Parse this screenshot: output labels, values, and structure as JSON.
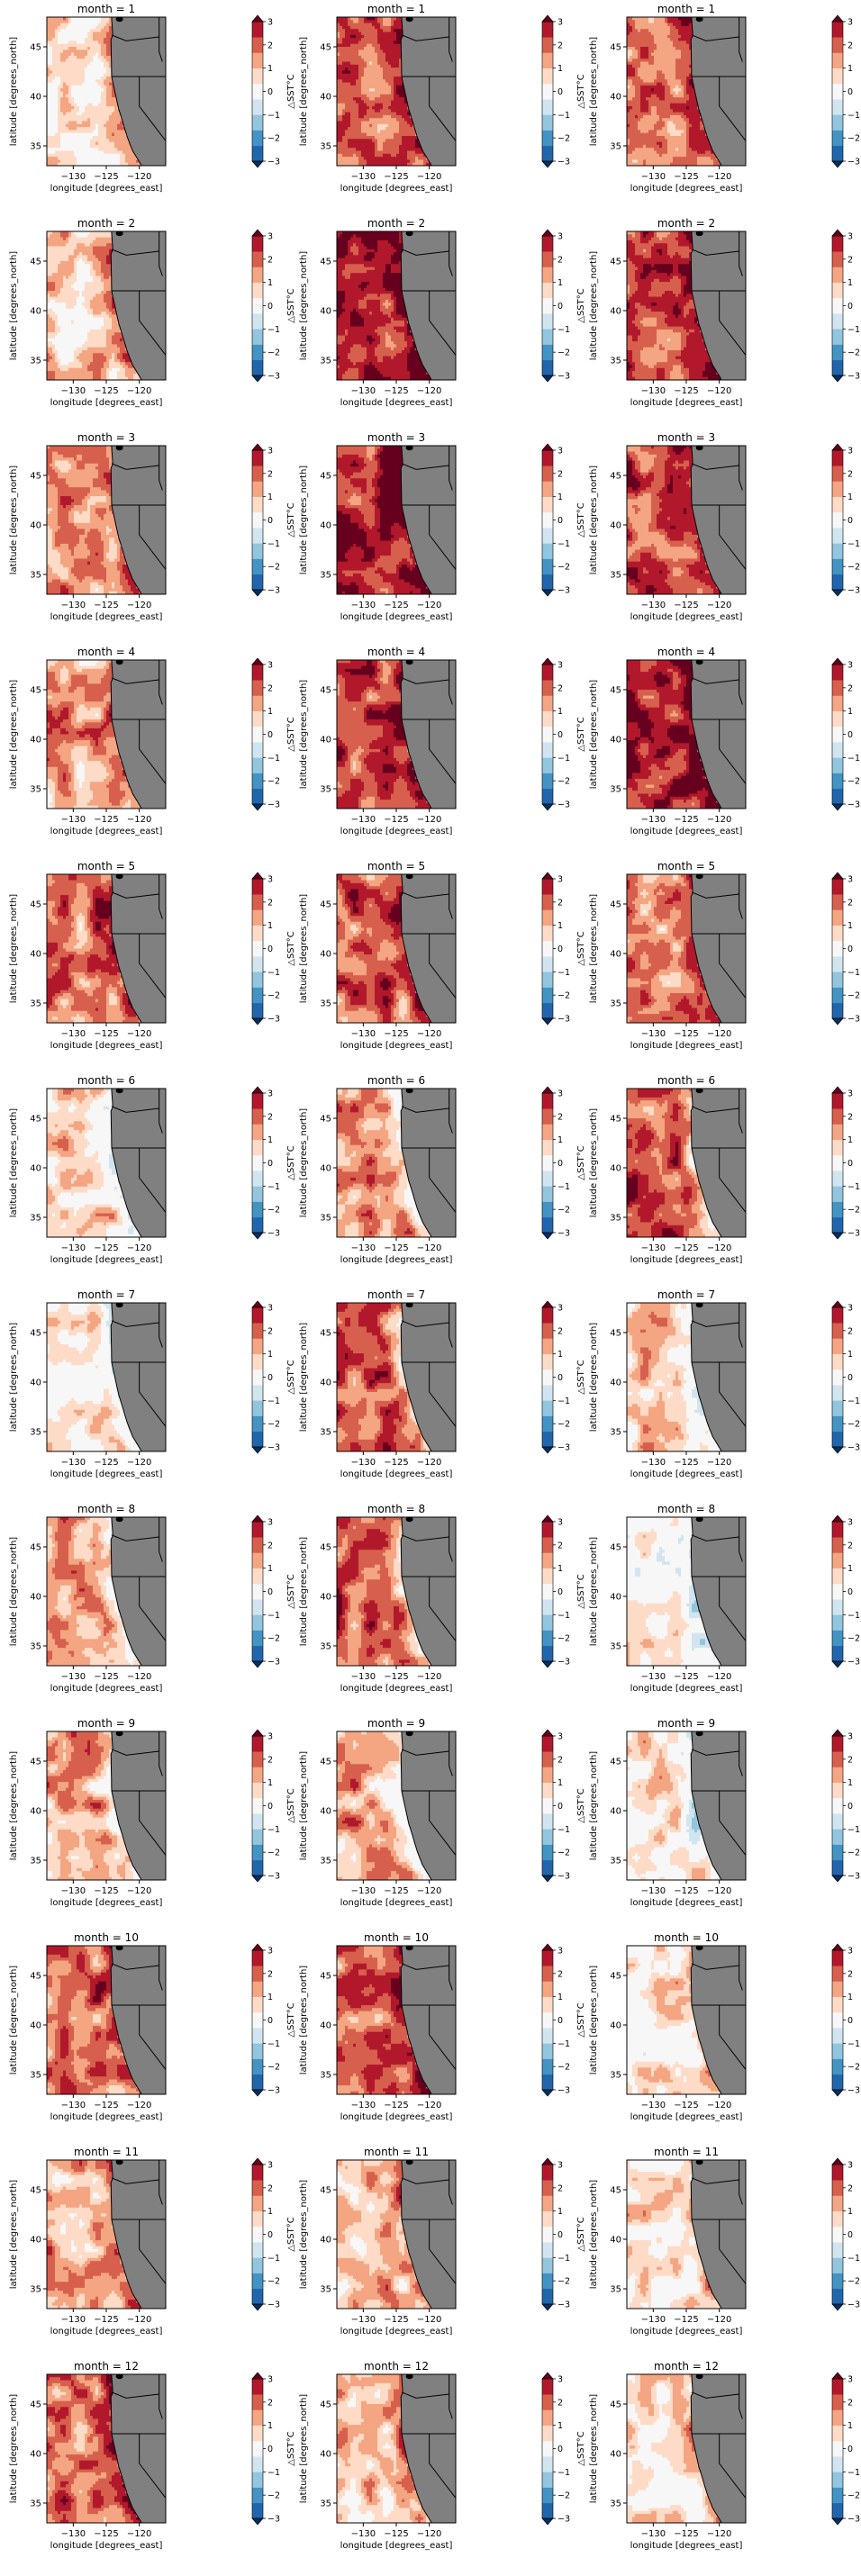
{
  "figure": {
    "rows": 12,
    "cols": 3,
    "title_prefix": "month = ",
    "months": [
      "1",
      "2",
      "3",
      "4",
      "5",
      "6",
      "7",
      "8",
      "9",
      "10",
      "11",
      "12"
    ]
  },
  "chart_data": {
    "type": "heatmap",
    "xlabel": "longitude [degrees_east]",
    "ylabel": "latitude [degrees_north]",
    "xlim": [
      -134,
      -116
    ],
    "ylim": [
      33,
      48
    ],
    "xticks": [
      -130,
      -125,
      -120
    ],
    "xtick_labels": [
      "−130",
      "−125",
      "−120"
    ],
    "yticks": [
      35,
      40,
      45
    ],
    "ytick_labels": [
      "35",
      "40",
      "45"
    ],
    "colorbar": {
      "label": "△SST°C",
      "ticks": [
        3,
        2,
        1,
        0,
        -1,
        -2,
        -3
      ],
      "tick_labels": [
        "3",
        "2",
        "1",
        "0",
        "−1",
        "−2",
        "−3"
      ],
      "range": [
        -3,
        3
      ],
      "extend": "both",
      "levels": [
        "#053061",
        "#2166ac",
        "#4393c3",
        "#92c5de",
        "#d1e5f0",
        "#f7f7f7",
        "#fddbc7",
        "#f4a582",
        "#d6604d",
        "#b2182b",
        "#67001f"
      ]
    },
    "land_color": "#808080",
    "panel_mean_anomaly": [
      [
        0.5,
        1.9,
        1.6
      ],
      [
        0.9,
        2.3,
        1.8
      ],
      [
        1.3,
        2.2,
        1.9
      ],
      [
        1.2,
        2.0,
        2.3
      ],
      [
        1.6,
        1.8,
        1.5
      ],
      [
        0.8,
        1.3,
        1.8
      ],
      [
        0.6,
        1.8,
        0.8
      ],
      [
        1.3,
        1.8,
        0.3
      ],
      [
        1.2,
        1.2,
        0.5
      ],
      [
        1.7,
        1.7,
        0.6
      ],
      [
        1.2,
        1.1,
        0.6
      ],
      [
        1.7,
        1.0,
        0.7
      ]
    ]
  }
}
